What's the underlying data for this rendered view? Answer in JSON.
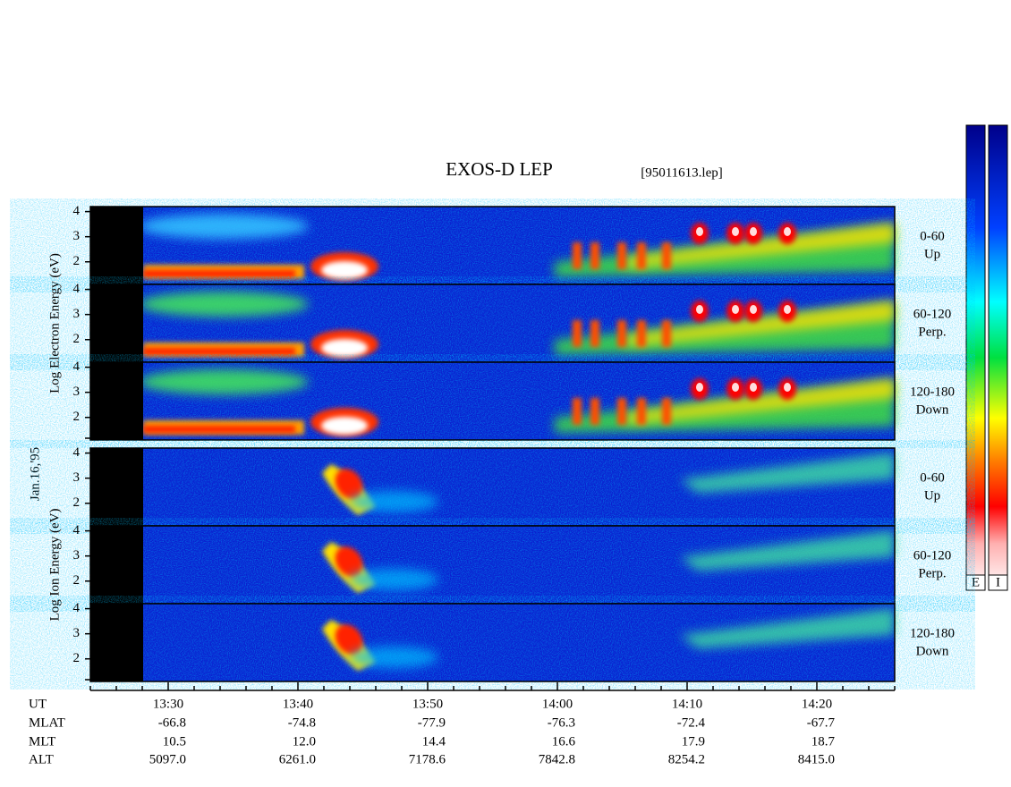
{
  "chart_data": {
    "type": "spectrogram",
    "title": "EXOS-D LEP",
    "file": "[95011613.lep]",
    "date": "Jan.16,'95",
    "groups": [
      {
        "ylabel": "Log Electron Energy (eV)",
        "panels": [
          {
            "angle": "0-60",
            "direction": "Up"
          },
          {
            "angle": "60-120",
            "direction": "Perp."
          },
          {
            "angle": "120-180",
            "direction": "Down"
          }
        ]
      },
      {
        "ylabel": "Log Ion Energy (eV)",
        "panels": [
          {
            "angle": "0-60",
            "direction": "Up"
          },
          {
            "angle": "60-120",
            "direction": "Perp."
          },
          {
            "angle": "120-180",
            "direction": "Down"
          }
        ]
      }
    ],
    "ylim": [
      1.1,
      4.2
    ],
    "yticks": [
      2,
      3,
      4
    ],
    "xlabel": "UT",
    "xlim": [
      "13:24",
      "14:26"
    ],
    "xticks": [
      "13:30",
      "13:40",
      "13:50",
      "14:00",
      "14:10",
      "14:20"
    ],
    "ephemeris": [
      {
        "name": "MLAT",
        "values": [
          "-66.8",
          "-74.8",
          "-77.9",
          "-76.3",
          "-72.4",
          "-67.7"
        ]
      },
      {
        "name": "MLT",
        "values": [
          "10.5",
          "12.0",
          "14.4",
          "16.6",
          "17.9",
          "18.7"
        ]
      },
      {
        "name": "ALT",
        "values": [
          "5097.0",
          "6261.0",
          "7178.6",
          "7842.8",
          "8254.2",
          "8415.0"
        ]
      }
    ],
    "colorbar_labels": [
      "E",
      "I"
    ]
  }
}
